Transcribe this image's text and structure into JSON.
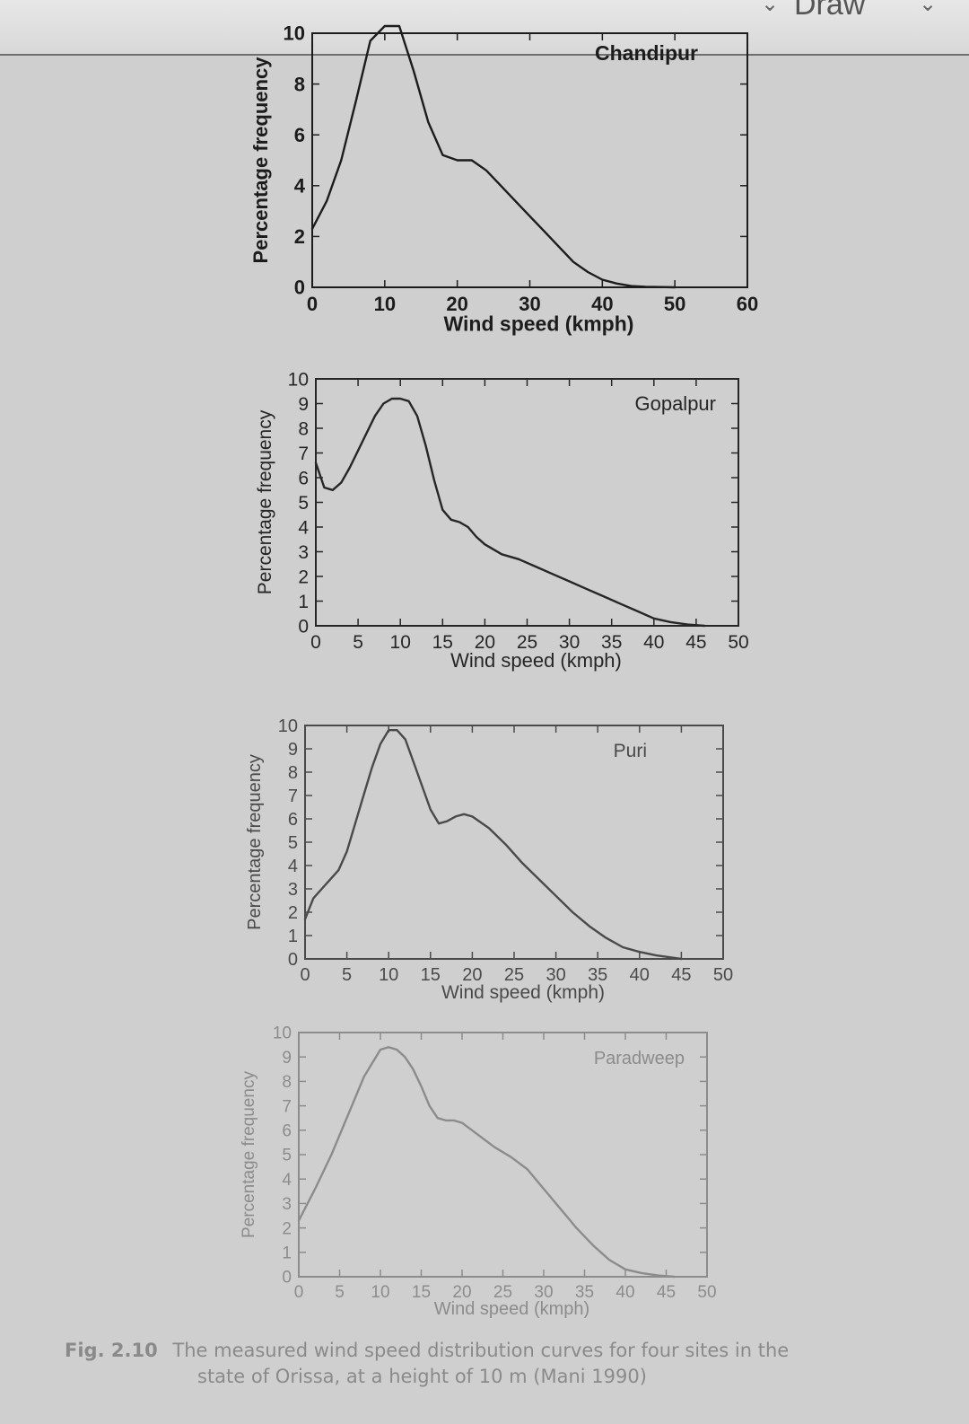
{
  "toolbar": {
    "menu_label": "Draw"
  },
  "caption": {
    "label": "Fig. 2.10",
    "line1": "The measured wind speed distribution curves for four sites in the",
    "line2": "state of Orissa, at a height of 10 m (Mani 1990)"
  },
  "chart_data": [
    {
      "type": "line",
      "title": "Chandipur",
      "xlabel": "Wind speed (kmph)",
      "ylabel": "Percentage frequency",
      "xlim": [
        0,
        60
      ],
      "ylim": [
        0,
        10
      ],
      "xticks": [
        0,
        10,
        20,
        30,
        40,
        50,
        60
      ],
      "yticks": [
        0,
        2,
        4,
        6,
        8,
        10
      ],
      "grid": false,
      "legend": "top-right",
      "series": [
        {
          "x": [
            0,
            2,
            4,
            6,
            8,
            10,
            12,
            14,
            16,
            18,
            20,
            22,
            24,
            26,
            28,
            30,
            32,
            34,
            36,
            38,
            40,
            42,
            44,
            46,
            48,
            50
          ],
          "values": [
            2.3,
            3.4,
            5.0,
            7.3,
            9.7,
            11.2,
            10.5,
            8.5,
            6.5,
            5.2,
            5.0,
            5.0,
            4.6,
            4.0,
            3.4,
            2.8,
            2.2,
            1.6,
            1.0,
            0.6,
            0.3,
            0.15,
            0.05,
            0.02,
            0.01,
            0.0
          ]
        }
      ]
    },
    {
      "type": "line",
      "title": "Gopalpur",
      "xlabel": "Wind speed (kmph)",
      "ylabel": "Percentage frequency",
      "xlim": [
        0,
        50
      ],
      "ylim": [
        0,
        10
      ],
      "xticks": [
        0,
        5,
        10,
        15,
        20,
        25,
        30,
        35,
        40,
        45,
        50
      ],
      "yticks": [
        0,
        1,
        2,
        3,
        4,
        5,
        6,
        7,
        8,
        9,
        10
      ],
      "grid": false,
      "legend": "top-right",
      "series": [
        {
          "x": [
            0,
            1,
            2,
            3,
            4,
            5,
            6,
            7,
            8,
            9,
            10,
            11,
            12,
            13,
            14,
            15,
            16,
            17,
            18,
            19,
            20,
            22,
            24,
            26,
            28,
            30,
            32,
            34,
            36,
            38,
            40,
            42,
            44,
            46
          ],
          "values": [
            6.6,
            5.6,
            5.5,
            5.8,
            6.4,
            7.1,
            7.8,
            8.5,
            9.0,
            9.2,
            9.2,
            9.1,
            8.5,
            7.3,
            5.9,
            4.7,
            4.3,
            4.2,
            4.0,
            3.6,
            3.3,
            2.9,
            2.7,
            2.4,
            2.1,
            1.8,
            1.5,
            1.2,
            0.9,
            0.6,
            0.3,
            0.15,
            0.05,
            0.0
          ]
        }
      ]
    },
    {
      "type": "line",
      "title": "Puri",
      "xlabel": "Wind speed (kmph)",
      "ylabel": "Percentage frequency",
      "xlim": [
        0,
        50
      ],
      "ylim": [
        0,
        10
      ],
      "xticks": [
        0,
        5,
        10,
        15,
        20,
        25,
        30,
        35,
        40,
        45,
        50
      ],
      "yticks": [
        0,
        1,
        2,
        3,
        4,
        5,
        6,
        7,
        8,
        9,
        10
      ],
      "grid": false,
      "legend": "top-right",
      "series": [
        {
          "x": [
            0,
            1,
            2,
            3,
            4,
            5,
            6,
            7,
            8,
            9,
            10,
            11,
            12,
            13,
            14,
            15,
            16,
            17,
            18,
            19,
            20,
            22,
            24,
            26,
            28,
            30,
            32,
            34,
            36,
            38,
            40,
            42,
            44,
            45
          ],
          "values": [
            1.7,
            2.6,
            3.0,
            3.4,
            3.8,
            4.6,
            5.8,
            7.0,
            8.2,
            9.2,
            9.8,
            9.8,
            9.4,
            8.4,
            7.4,
            6.4,
            5.8,
            5.9,
            6.1,
            6.2,
            6.1,
            5.6,
            4.9,
            4.1,
            3.4,
            2.7,
            2.0,
            1.4,
            0.9,
            0.5,
            0.3,
            0.15,
            0.05,
            0.0
          ]
        }
      ]
    },
    {
      "type": "line",
      "title": "Paradweep",
      "xlabel": "Wind speed (kmph)",
      "ylabel": "Percentage frequency",
      "xlim": [
        0,
        50
      ],
      "ylim": [
        0,
        10
      ],
      "xticks": [
        0,
        5,
        10,
        15,
        20,
        25,
        30,
        35,
        40,
        45,
        50
      ],
      "yticks": [
        0,
        1,
        2,
        3,
        4,
        5,
        6,
        7,
        8,
        9,
        10
      ],
      "grid": false,
      "legend": "top-right",
      "series": [
        {
          "x": [
            0,
            2,
            4,
            6,
            8,
            10,
            11,
            12,
            13,
            14,
            15,
            16,
            17,
            18,
            19,
            20,
            22,
            24,
            26,
            28,
            30,
            32,
            34,
            36,
            38,
            40,
            42,
            44,
            46
          ],
          "values": [
            2.3,
            3.6,
            5.0,
            6.6,
            8.2,
            9.3,
            9.4,
            9.3,
            9.0,
            8.5,
            7.8,
            7.0,
            6.5,
            6.4,
            6.4,
            6.3,
            5.8,
            5.3,
            4.9,
            4.4,
            3.6,
            2.8,
            2.0,
            1.3,
            0.7,
            0.3,
            0.15,
            0.05,
            0.0
          ]
        }
      ]
    }
  ]
}
